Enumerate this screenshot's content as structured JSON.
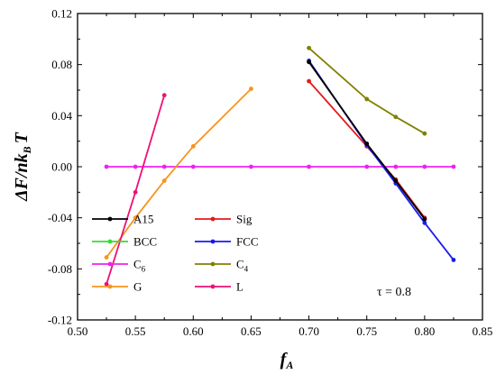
{
  "chart_data": {
    "type": "line",
    "xlim": [
      0.5,
      0.85
    ],
    "ylim": [
      -0.12,
      0.12
    ],
    "x_ticks": [
      "0.50",
      "0.55",
      "0.60",
      "0.65",
      "0.70",
      "0.75",
      "0.80",
      "0.85"
    ],
    "y_ticks": [
      "0.12",
      "0.08",
      "0.04",
      "0.00",
      "-0.04",
      "-0.08",
      "-0.12"
    ],
    "ylabel": {
      "main": "ΔF/nk",
      "sub": "B",
      "tail": "T"
    },
    "xlabel": {
      "main": "f",
      "sub": "A"
    },
    "annotation": "τ = 0.8",
    "grid": false,
    "legend_placement": "lower-left",
    "series": [
      {
        "name": "A15",
        "color": "#000000",
        "x": [
          0.7,
          0.75,
          0.775,
          0.8
        ],
        "y": [
          0.082,
          0.018,
          -0.011,
          -0.041
        ]
      },
      {
        "name": "Sig",
        "color": "#e41a1c",
        "x": [
          0.7,
          0.75,
          0.775,
          0.8
        ],
        "y": [
          0.067,
          0.016,
          -0.01,
          -0.04
        ]
      },
      {
        "name": "BCC",
        "color": "#33dd33",
        "x": [],
        "y": []
      },
      {
        "name": "FCC",
        "color": "#1a1aee",
        "x": [
          0.7,
          0.75,
          0.775,
          0.8,
          0.825
        ],
        "y": [
          0.083,
          0.017,
          -0.013,
          -0.044,
          -0.073
        ]
      },
      {
        "name": "C",
        "name_sub": "6",
        "color": "#ee22ee",
        "x": [
          0.525,
          0.55,
          0.575,
          0.6,
          0.65,
          0.7,
          0.75,
          0.775,
          0.8,
          0.825
        ],
        "y": [
          0,
          0,
          0,
          0,
          0,
          0,
          0,
          0,
          0,
          0
        ]
      },
      {
        "name": "C",
        "name_sub": "4",
        "color": "#808000",
        "x": [
          0.7,
          0.75,
          0.775,
          0.8
        ],
        "y": [
          0.093,
          0.053,
          0.039,
          0.026
        ]
      },
      {
        "name": "G",
        "color": "#f7941d",
        "x": [
          0.525,
          0.55,
          0.575,
          0.6,
          0.65
        ],
        "y": [
          -0.071,
          -0.04,
          -0.011,
          0.016,
          0.061
        ]
      },
      {
        "name": "L",
        "color": "#ee1177",
        "x": [
          0.525,
          0.55,
          0.575
        ],
        "y": [
          -0.092,
          -0.02,
          0.056
        ]
      }
    ]
  }
}
